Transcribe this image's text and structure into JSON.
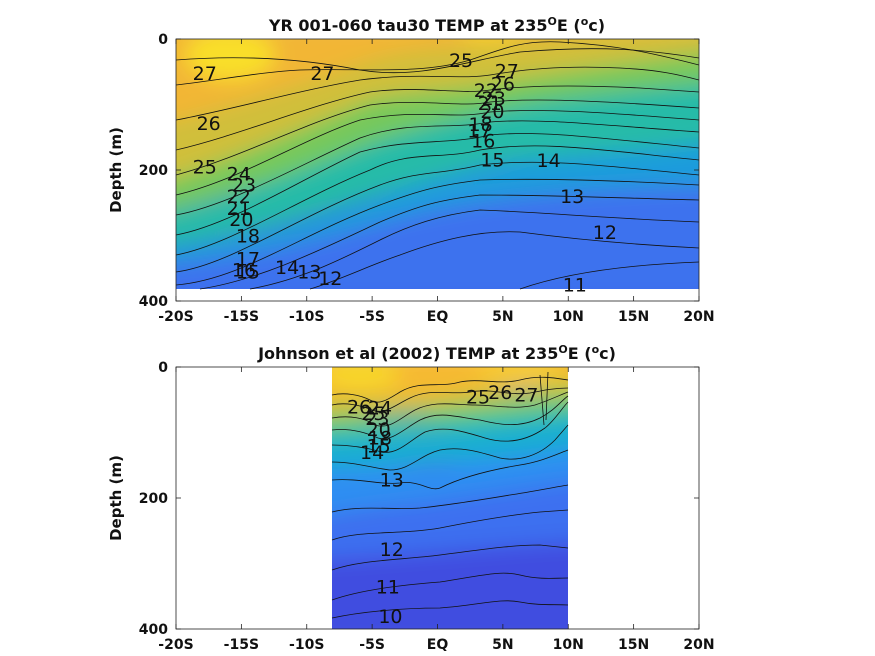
{
  "chart_data": [
    {
      "type": "heatmap",
      "title": "YR 001-060 tau30 TEMP at 235",
      "title_sup": "O",
      "title_tail": "E (",
      "title_sup2": "o",
      "title_end": "c)",
      "ylabel": "Depth (m)",
      "xlim": [
        -20,
        20
      ],
      "ylim": [
        0,
        400
      ],
      "x_ticks": [
        -20,
        -15,
        -10,
        -5,
        0,
        5,
        10,
        15,
        20
      ],
      "x_tick_labels": [
        "-20S",
        "-15S",
        "-10S",
        "-5S",
        "EQ",
        "5N",
        "10N",
        "15N",
        "20N"
      ],
      "y_ticks": [
        0,
        200,
        400
      ],
      "y_tick_labels": [
        "0",
        "200",
        "400"
      ],
      "data_x_range": [
        -20,
        20
      ],
      "data_depth_range": [
        0,
        380
      ],
      "colormap": [
        "#3e4fe0",
        "#2f7bf4",
        "#12a9d6",
        "#27c3a7",
        "#7ecd5d",
        "#cbc13a",
        "#f4b836",
        "#f8de2a"
      ],
      "contour_labels": [
        {
          "text": "27",
          "x": -17.8,
          "y": 52
        },
        {
          "text": "27",
          "x": -8.8,
          "y": 52
        },
        {
          "text": "26",
          "x": -17.5,
          "y": 128
        },
        {
          "text": "25",
          "x": -17.8,
          "y": 195
        },
        {
          "text": "24",
          "x": -15.2,
          "y": 205
        },
        {
          "text": "23",
          "x": -14.8,
          "y": 222
        },
        {
          "text": "22",
          "x": -15.2,
          "y": 240
        },
        {
          "text": "21",
          "x": -15.2,
          "y": 258
        },
        {
          "text": "20",
          "x": -15.0,
          "y": 275
        },
        {
          "text": "18",
          "x": -14.5,
          "y": 300
        },
        {
          "text": "17",
          "x": -14.5,
          "y": 335
        },
        {
          "text": "16",
          "x": -14.8,
          "y": 352
        },
        {
          "text": "15",
          "x": -14.5,
          "y": 355
        },
        {
          "text": "14",
          "x": -11.5,
          "y": 348
        },
        {
          "text": "13",
          "x": -9.8,
          "y": 355
        },
        {
          "text": "12",
          "x": -8.2,
          "y": 365
        },
        {
          "text": "25",
          "x": 1.8,
          "y": 32
        },
        {
          "text": "27",
          "x": 5.3,
          "y": 48
        },
        {
          "text": "26",
          "x": 5.0,
          "y": 68
        },
        {
          "text": "22",
          "x": 3.7,
          "y": 78
        },
        {
          "text": "23",
          "x": 4.3,
          "y": 90
        },
        {
          "text": "21",
          "x": 4.0,
          "y": 98
        },
        {
          "text": "20",
          "x": 4.2,
          "y": 110
        },
        {
          "text": "18",
          "x": 3.3,
          "y": 130
        },
        {
          "text": "17",
          "x": 3.2,
          "y": 140
        },
        {
          "text": "16",
          "x": 3.5,
          "y": 155
        },
        {
          "text": "15",
          "x": 4.2,
          "y": 184
        },
        {
          "text": "14",
          "x": 8.5,
          "y": 185
        },
        {
          "text": "13",
          "x": 10.3,
          "y": 240
        },
        {
          "text": "12",
          "x": 12.8,
          "y": 295
        },
        {
          "text": "11",
          "x": 10.5,
          "y": 375
        }
      ]
    },
    {
      "type": "heatmap",
      "title": "Johnson et al (2002) TEMP at 235",
      "title_sup": "O",
      "title_tail": "E (",
      "title_sup2": "o",
      "title_end": "c)",
      "ylabel": "Depth (m)",
      "xlim": [
        -20,
        20
      ],
      "ylim": [
        0,
        400
      ],
      "x_ticks": [
        -20,
        -15,
        -10,
        -5,
        0,
        5,
        10,
        15,
        20
      ],
      "x_tick_labels": [
        "-20S",
        "-15S",
        "-10S",
        "-5S",
        "EQ",
        "5N",
        "10N",
        "15N",
        "20N"
      ],
      "y_ticks": [
        0,
        200,
        400
      ],
      "y_tick_labels": [
        "0",
        "200",
        "400"
      ],
      "data_x_range": [
        -8,
        10
      ],
      "data_depth_range": [
        0,
        400
      ],
      "colormap": [
        "#3e4fe0",
        "#2f7bf4",
        "#12a9d6",
        "#27c3a7",
        "#7ecd5d",
        "#cbc13a",
        "#f4b836",
        "#f8de2a"
      ],
      "contour_labels": [
        {
          "text": "26",
          "x": -6.0,
          "y": 60
        },
        {
          "text": "25",
          "x": -4.9,
          "y": 70
        },
        {
          "text": "24",
          "x": -4.4,
          "y": 62
        },
        {
          "text": "23",
          "x": -4.6,
          "y": 78
        },
        {
          "text": "20",
          "x": -4.5,
          "y": 95
        },
        {
          "text": "18",
          "x": -4.4,
          "y": 108
        },
        {
          "text": "15",
          "x": -4.5,
          "y": 120
        },
        {
          "text": "14",
          "x": -5.0,
          "y": 130
        },
        {
          "text": "13",
          "x": -3.5,
          "y": 172
        },
        {
          "text": "25",
          "x": 3.1,
          "y": 45
        },
        {
          "text": "26",
          "x": 4.8,
          "y": 38
        },
        {
          "text": "27",
          "x": 6.8,
          "y": 42
        },
        {
          "text": "12",
          "x": -3.5,
          "y": 278
        },
        {
          "text": "11",
          "x": -3.8,
          "y": 335
        },
        {
          "text": "10",
          "x": -3.6,
          "y": 380
        }
      ]
    }
  ]
}
